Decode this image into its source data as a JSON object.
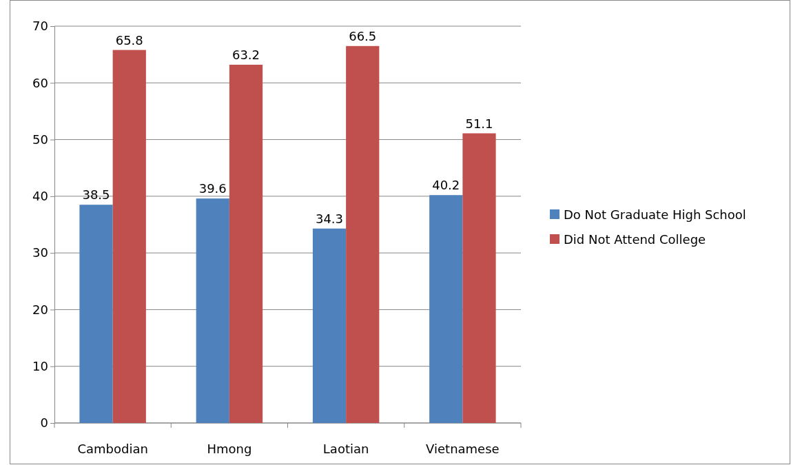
{
  "chart_data": {
    "type": "bar",
    "categories": [
      "Cambodian",
      "Hmong",
      "Laotian",
      "Vietnamese"
    ],
    "series": [
      {
        "name": "Do Not Graduate High School",
        "color": "#4f81bd",
        "values": [
          38.5,
          39.6,
          34.3,
          40.2
        ]
      },
      {
        "name": "Did Not Attend College",
        "color": "#c0504d",
        "values": [
          65.8,
          63.2,
          66.5,
          51.1
        ]
      }
    ],
    "ylim": [
      0,
      70
    ],
    "yticks": [
      0,
      10,
      20,
      30,
      40,
      50,
      60,
      70
    ],
    "grid": "y",
    "legend": "right",
    "data_labels": true
  }
}
